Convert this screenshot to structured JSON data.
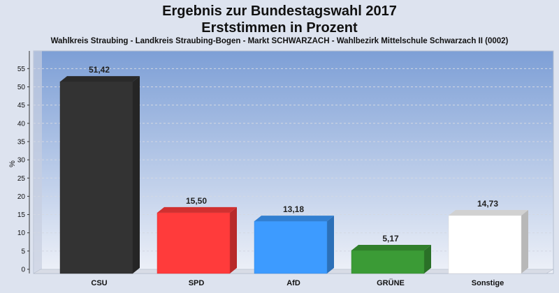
{
  "chart_data": {
    "type": "bar",
    "title": "Ergebnis zur Bundestagswahl 2017",
    "title2": "Erststimmen in Prozent",
    "subtitle": "Wahlkreis Straubing - Landkreis Straubing-Bogen - Markt SCHWARZACH - Wahlbezirk Mittelschule Schwarzach II (0002)",
    "ylabel": "%",
    "xlabel": "",
    "ylim": [
      0,
      57
    ],
    "yticks": [
      0,
      5,
      10,
      15,
      20,
      25,
      30,
      35,
      40,
      45,
      50,
      55
    ],
    "categories": [
      "CSU",
      "SPD",
      "AfD",
      "GRÜNE",
      "Sonstige"
    ],
    "values": [
      51.42,
      15.5,
      13.18,
      5.17,
      14.73
    ],
    "value_labels": [
      "51,42",
      "15,50",
      "13,18",
      "5,17",
      "14,73"
    ],
    "colors": [
      "#333333",
      "#ff3b3b",
      "#3d9bff",
      "#3b9b36",
      "#ffffff"
    ],
    "grid": true,
    "legend": "none"
  }
}
